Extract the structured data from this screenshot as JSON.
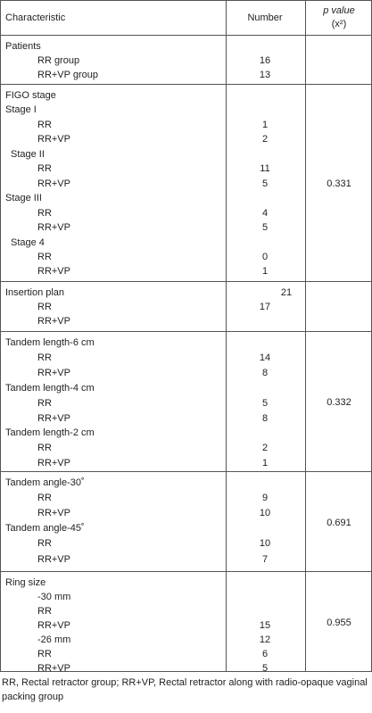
{
  "table": {
    "headers": {
      "characteristic": "Characteristic",
      "number": "Number",
      "p_value": "p value",
      "p_value_unit": "(x²)"
    },
    "sections": [
      {
        "p_value": "",
        "rows": [
          {
            "label": "Patients",
            "indent": 0,
            "value": ""
          },
          {
            "label": "RR group",
            "indent": 2,
            "value": "16"
          },
          {
            "label": "RR+VP group",
            "indent": 2,
            "value": "13"
          }
        ]
      },
      {
        "p_value": "0.331",
        "rows": [
          {
            "label": "FIGO stage",
            "indent": 0,
            "value": ""
          },
          {
            "label": "Stage I",
            "indent": 0,
            "value": ""
          },
          {
            "label": "RR",
            "indent": 2,
            "value": "1"
          },
          {
            "label": "RR+VP",
            "indent": 2,
            "value": "2"
          },
          {
            "label": "Stage II",
            "indent": 1,
            "value": ""
          },
          {
            "label": "RR",
            "indent": 2,
            "value": "11"
          },
          {
            "label": "RR+VP",
            "indent": 2,
            "value": "5"
          },
          {
            "label": "Stage III",
            "indent": 0,
            "value": ""
          },
          {
            "label": "RR",
            "indent": 2,
            "value": "4"
          },
          {
            "label": "RR+VP",
            "indent": 2,
            "value": "5"
          },
          {
            "label": "Stage 4",
            "indent": 1,
            "value": ""
          },
          {
            "label": "RR",
            "indent": 2,
            "value": "0"
          },
          {
            "label": "RR+VP",
            "indent": 2,
            "value": "1"
          }
        ]
      },
      {
        "p_value": "",
        "rows": [
          {
            "label": "Insertion plan",
            "indent": 0,
            "value": "21",
            "value_offset": "right"
          },
          {
            "label": "RR",
            "indent": 2,
            "value": "17"
          },
          {
            "label": "RR+VP",
            "indent": 2,
            "value": ""
          }
        ]
      },
      {
        "p_value": "0.332",
        "rows": [
          {
            "label": "Tandem length-6 cm",
            "indent": 0,
            "value": ""
          },
          {
            "label": "RR",
            "indent": 2,
            "value": "14"
          },
          {
            "label": "RR+VP",
            "indent": 2,
            "value": "8"
          },
          {
            "label": "Tandem length-4 cm",
            "indent": 0,
            "value": ""
          },
          {
            "label": "RR",
            "indent": 2,
            "value": "5"
          },
          {
            "label": "RR+VP",
            "indent": 2,
            "value": "8"
          },
          {
            "label": "Tandem length-2 cm",
            "indent": 0,
            "value": ""
          },
          {
            "label": "RR",
            "indent": 2,
            "value": "2"
          },
          {
            "label": "RR+VP",
            "indent": 2,
            "value": "1"
          }
        ]
      },
      {
        "p_value": "0.691",
        "rows": [
          {
            "label": "Tandem angle-30˚",
            "indent": 0,
            "value": ""
          },
          {
            "label": "RR",
            "indent": 2,
            "value": "9"
          },
          {
            "label": "RR+VP",
            "indent": 2,
            "value": "10"
          },
          {
            "label": "Tandem angle-45˚",
            "indent": 0,
            "value": ""
          },
          {
            "label": "RR",
            "indent": 2,
            "value": "10"
          },
          {
            "label": "RR+VP",
            "indent": 2,
            "value": "7"
          }
        ]
      },
      {
        "p_value": "0.955",
        "rows": [
          {
            "label": "Ring size",
            "indent": 0,
            "value": ""
          },
          {
            "label": "-30 mm",
            "indent": 2,
            "value": ""
          },
          {
            "label": "RR",
            "indent": 2,
            "value": ""
          },
          {
            "label": "RR+VP",
            "indent": 2,
            "value": "15"
          },
          {
            "label": "-26 mm",
            "indent": 2,
            "value": "12"
          },
          {
            "label": "RR",
            "indent": 2,
            "value": "6"
          },
          {
            "label": "RR+VP",
            "indent": 2,
            "value": "5"
          }
        ]
      }
    ]
  },
  "footnote": "RR, Rectal retractor group; RR+VP, Rectal retractor along with radio-opaque vaginal packing group"
}
